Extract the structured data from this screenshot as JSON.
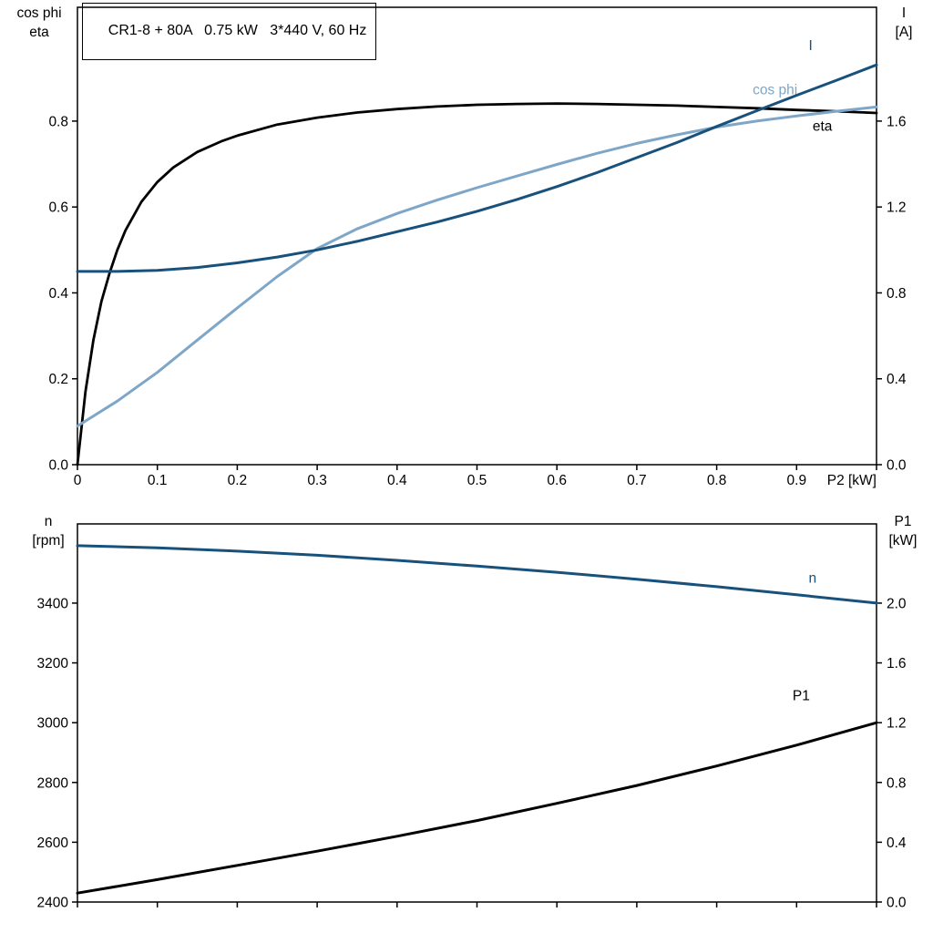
{
  "title_box": "CR1-8 + 80A   0.75 kW   3*440 V, 60 Hz",
  "colors": {
    "black": "#000000",
    "dark_blue": "#17517c",
    "light_blue": "#7ea6c8",
    "border": "#000000"
  },
  "chart_data": [
    {
      "type": "line",
      "title": "CR1-8 + 80A   0.75 kW   3*440 V, 60 Hz",
      "x_axis": {
        "min": 0,
        "max": 1.0,
        "ticks": [
          0,
          0.1,
          0.2,
          0.3,
          0.4,
          0.5,
          0.6,
          0.7,
          0.8,
          0.9,
          1.0
        ],
        "tick_labels": [
          "0",
          "0.1",
          "0.2",
          "0.3",
          "0.4",
          "0.5",
          "0.6",
          "0.7",
          "0.8",
          "0.9",
          ""
        ],
        "label": "P2 [kW]"
      },
      "left_axis": {
        "min": 0,
        "max": 1.065,
        "ticks": [
          0,
          0.2,
          0.4,
          0.6,
          0.8
        ],
        "tick_labels": [
          "0.0",
          "0.2",
          "0.4",
          "0.6",
          "0.8"
        ],
        "label_lines": [
          "cos phi",
          "eta"
        ]
      },
      "right_axis": {
        "min": 0,
        "max": 2.13,
        "ticks": [
          0,
          0.4,
          0.8,
          1.2,
          1.6
        ],
        "tick_labels": [
          "0.0",
          "0.4",
          "0.8",
          "1.2",
          "1.6"
        ],
        "label_lines": [
          "I",
          "[A]"
        ]
      },
      "series": [
        {
          "id": "eta",
          "label": "eta",
          "axis": "left",
          "color": "#000000",
          "width": 2.8,
          "label_pos": {
            "x": 0.92,
            "v": 0.778
          },
          "points": [
            [
              0,
              0
            ],
            [
              0.01,
              0.17
            ],
            [
              0.02,
              0.29
            ],
            [
              0.03,
              0.38
            ],
            [
              0.04,
              0.445
            ],
            [
              0.05,
              0.5
            ],
            [
              0.06,
              0.545
            ],
            [
              0.08,
              0.612
            ],
            [
              0.1,
              0.658
            ],
            [
              0.12,
              0.692
            ],
            [
              0.15,
              0.728
            ],
            [
              0.18,
              0.753
            ],
            [
              0.2,
              0.766
            ],
            [
              0.25,
              0.792
            ],
            [
              0.3,
              0.808
            ],
            [
              0.35,
              0.82
            ],
            [
              0.4,
              0.828
            ],
            [
              0.45,
              0.834
            ],
            [
              0.5,
              0.838
            ],
            [
              0.55,
              0.84
            ],
            [
              0.6,
              0.841
            ],
            [
              0.65,
              0.84
            ],
            [
              0.7,
              0.838
            ],
            [
              0.75,
              0.836
            ],
            [
              0.8,
              0.833
            ],
            [
              0.85,
              0.83
            ],
            [
              0.9,
              0.826
            ],
            [
              0.95,
              0.823
            ],
            [
              1.0,
              0.819
            ]
          ]
        },
        {
          "id": "cos-phi",
          "label": "cos phi",
          "axis": "left",
          "color": "#7ea6c8",
          "width": 3,
          "label_pos": {
            "x": 0.845,
            "v": 0.862
          },
          "points": [
            [
              0,
              0.09
            ],
            [
              0.05,
              0.148
            ],
            [
              0.1,
              0.215
            ],
            [
              0.15,
              0.29
            ],
            [
              0.2,
              0.365
            ],
            [
              0.25,
              0.438
            ],
            [
              0.3,
              0.503
            ],
            [
              0.35,
              0.549
            ],
            [
              0.4,
              0.585
            ],
            [
              0.45,
              0.616
            ],
            [
              0.5,
              0.645
            ],
            [
              0.55,
              0.672
            ],
            [
              0.6,
              0.699
            ],
            [
              0.65,
              0.725
            ],
            [
              0.7,
              0.748
            ],
            [
              0.75,
              0.768
            ],
            [
              0.8,
              0.786
            ],
            [
              0.85,
              0.8
            ],
            [
              0.9,
              0.812
            ],
            [
              0.95,
              0.823
            ],
            [
              1.0,
              0.833
            ]
          ]
        },
        {
          "id": "I",
          "label": "I",
          "axis": "right",
          "color": "#17517c",
          "width": 3,
          "label_pos": {
            "x": 0.915,
            "v": 1.93
          },
          "points": [
            [
              0,
              0.9
            ],
            [
              0.05,
              0.9
            ],
            [
              0.1,
              0.905
            ],
            [
              0.15,
              0.918
            ],
            [
              0.2,
              0.94
            ],
            [
              0.25,
              0.967
            ],
            [
              0.3,
              1.0
            ],
            [
              0.35,
              1.04
            ],
            [
              0.4,
              1.085
            ],
            [
              0.45,
              1.13
            ],
            [
              0.5,
              1.18
            ],
            [
              0.55,
              1.235
            ],
            [
              0.6,
              1.295
            ],
            [
              0.65,
              1.36
            ],
            [
              0.7,
              1.43
            ],
            [
              0.75,
              1.5
            ],
            [
              0.8,
              1.575
            ],
            [
              0.85,
              1.648
            ],
            [
              0.9,
              1.72
            ],
            [
              0.95,
              1.79
            ],
            [
              1.0,
              1.862
            ]
          ]
        }
      ]
    },
    {
      "type": "line",
      "title": "",
      "x_axis": {
        "min": 0,
        "max": 1.0,
        "ticks": [
          0,
          0.1,
          0.2,
          0.3,
          0.4,
          0.5,
          0.6,
          0.7,
          0.8,
          0.9,
          1.0
        ],
        "tick_labels": null,
        "label": ""
      },
      "left_axis": {
        "min": 2400,
        "max": 3665,
        "ticks": [
          2400,
          2600,
          2800,
          3000,
          3200,
          3400
        ],
        "tick_labels": [
          "2400",
          "2600",
          "2800",
          "3000",
          "3200",
          "3400"
        ],
        "label_lines": [
          "n",
          "[rpm]"
        ]
      },
      "right_axis": {
        "min": 0,
        "max": 2.53,
        "ticks": [
          0,
          0.4,
          0.8,
          1.2,
          1.6,
          2.0
        ],
        "tick_labels": [
          "0.0",
          "0.4",
          "0.8",
          "1.2",
          "1.6",
          "2.0"
        ],
        "label_lines": [
          "P1",
          "[kW]"
        ]
      },
      "series": [
        {
          "id": "n",
          "label": "n",
          "axis": "left",
          "color": "#17517c",
          "width": 3,
          "label_pos": {
            "x": 0.915,
            "v": 3468
          },
          "points": [
            [
              0,
              3592
            ],
            [
              0.1,
              3585
            ],
            [
              0.2,
              3574
            ],
            [
              0.3,
              3560
            ],
            [
              0.4,
              3543
            ],
            [
              0.5,
              3524
            ],
            [
              0.6,
              3503
            ],
            [
              0.7,
              3480
            ],
            [
              0.8,
              3455
            ],
            [
              0.9,
              3428
            ],
            [
              1.0,
              3400
            ]
          ]
        },
        {
          "id": "P1",
          "label": "P1",
          "axis": "right",
          "color": "#000000",
          "width": 3,
          "label_pos": {
            "x": 0.895,
            "v": 1.35
          },
          "points": [
            [
              0,
              0.06
            ],
            [
              0.1,
              0.15
            ],
            [
              0.2,
              0.245
            ],
            [
              0.3,
              0.34
            ],
            [
              0.4,
              0.44
            ],
            [
              0.5,
              0.545
            ],
            [
              0.6,
              0.66
            ],
            [
              0.7,
              0.78
            ],
            [
              0.8,
              0.91
            ],
            [
              0.9,
              1.05
            ],
            [
              1.0,
              1.2
            ]
          ]
        }
      ]
    }
  ]
}
